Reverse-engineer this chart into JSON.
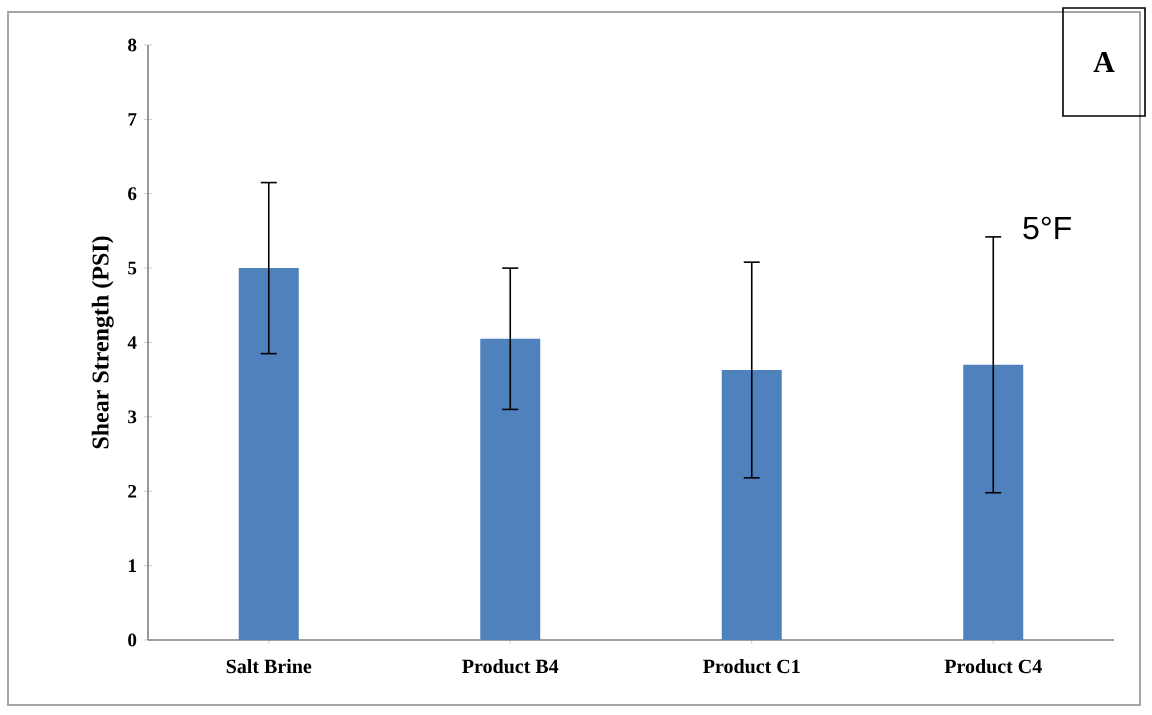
{
  "chart_data": {
    "type": "bar",
    "ylabel": "Shear Strength (PSI)",
    "categories": [
      "Salt Brine",
      "Product B4",
      "Product C1",
      "Product C4"
    ],
    "values": [
      5.0,
      4.05,
      3.63,
      3.7
    ],
    "errors": [
      1.15,
      0.95,
      1.45,
      1.72
    ],
    "color": "#4f81bd",
    "ylim": [
      0,
      8
    ],
    "yticks": [
      0,
      1,
      2,
      3,
      4,
      5,
      6,
      7,
      8
    ],
    "annotations": [
      "A",
      "5°F"
    ]
  }
}
